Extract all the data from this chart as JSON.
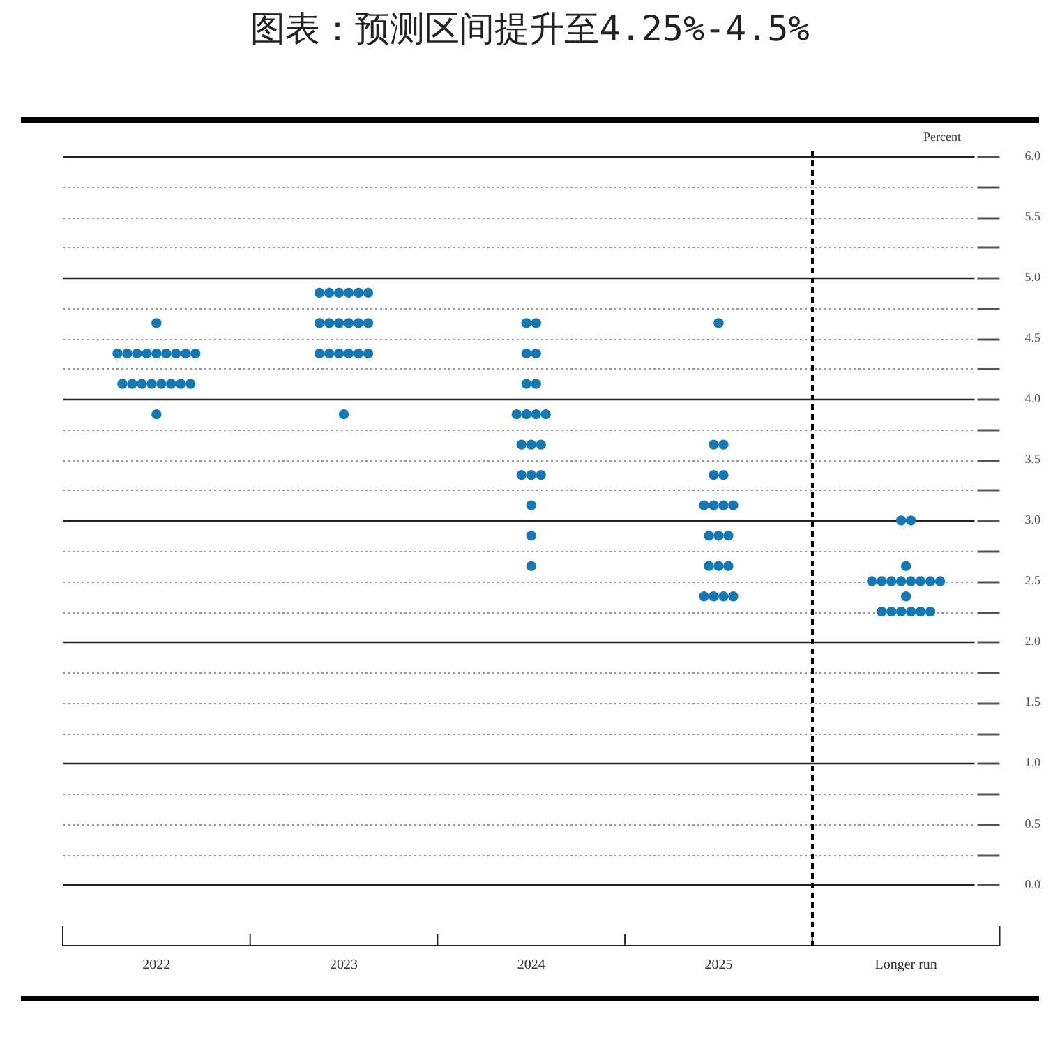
{
  "chart_data": {
    "type": "scatter",
    "title": "图表：预测区间提升至4.25%-4.5%",
    "ylabel": "Percent",
    "categories": [
      "2022",
      "2023",
      "2024",
      "2025",
      "Longer run"
    ],
    "ylim": [
      -0.5,
      6
    ],
    "ref_lines": [
      {
        "axis": "x",
        "value": "Longer run",
        "color": "#000000",
        "line_style": "dashed"
      }
    ],
    "yticks": [
      {
        "value": 0,
        "label": "0.0"
      },
      {
        "value": 0.25,
        "label": null
      },
      {
        "value": 0.5,
        "label": "0.5"
      },
      {
        "value": 0.75,
        "label": null
      },
      {
        "value": 1,
        "label": "1.0"
      },
      {
        "value": 1.25,
        "label": null
      },
      {
        "value": 1.5,
        "label": "1.5"
      },
      {
        "value": 1.75,
        "label": null
      },
      {
        "value": 2,
        "label": "2.0"
      },
      {
        "value": 2.25,
        "label": null
      },
      {
        "value": 2.5,
        "label": "2.5"
      },
      {
        "value": 2.75,
        "label": null
      },
      {
        "value": 3,
        "label": "3.0"
      },
      {
        "value": 3.25,
        "label": null
      },
      {
        "value": 3.5,
        "label": "3.5"
      },
      {
        "value": 3.75,
        "label": null
      },
      {
        "value": 4,
        "label": "4.0"
      },
      {
        "value": 4.25,
        "label": null
      },
      {
        "value": 4.5,
        "label": "4.5"
      },
      {
        "value": 4.75,
        "label": null
      },
      {
        "value": 5,
        "label": "5.0"
      },
      {
        "value": 5.25,
        "label": null
      },
      {
        "value": 5.5,
        "label": "5.5"
      },
      {
        "value": 5.75,
        "label": null
      },
      {
        "value": 6,
        "label": "6.0"
      }
    ],
    "grid": "y",
    "marker": "circle",
    "legend": false,
    "series": [
      {
        "color": "#1478b4",
        "values": [
          4.625,
          4.875,
          4.625,
          4.625,
          3
        ]
      },
      {
        "color": "#1478b4",
        "values": [
          4.375,
          4.875,
          4.625,
          3.625,
          3
        ]
      },
      {
        "color": "#1478b4",
        "values": [
          4.375,
          4.875,
          4.375,
          3.625,
          2.625
        ]
      },
      {
        "color": "#1478b4",
        "values": [
          4.375,
          4.875,
          4.375,
          3.375,
          2.5
        ]
      },
      {
        "color": "#1478b4",
        "values": [
          4.375,
          4.875,
          4.125,
          3.375,
          2.5
        ]
      },
      {
        "color": "#1478b4",
        "values": [
          4.375,
          4.875,
          4.125,
          3.125,
          2.5
        ]
      },
      {
        "color": "#1478b4",
        "values": [
          4.375,
          4.625,
          3.875,
          3.125,
          2.5
        ]
      },
      {
        "color": "#1478b4",
        "values": [
          4.375,
          4.625,
          3.875,
          3.125,
          2.5
        ]
      },
      {
        "color": "#1478b4",
        "values": [
          4.375,
          4.625,
          3.875,
          3.125,
          2.5
        ]
      },
      {
        "color": "#1478b4",
        "values": [
          4.375,
          4.625,
          3.875,
          2.875,
          2.5
        ]
      },
      {
        "color": "#1478b4",
        "values": [
          4.125,
          4.625,
          3.625,
          2.875,
          2.5
        ]
      },
      {
        "color": "#1478b4",
        "values": [
          4.125,
          4.625,
          3.625,
          2.875,
          2.375
        ]
      },
      {
        "color": "#1478b4",
        "values": [
          4.125,
          4.375,
          3.625,
          2.625,
          2.25
        ]
      },
      {
        "color": "#1478b4",
        "values": [
          4.125,
          4.375,
          3.375,
          2.625,
          2.25
        ]
      },
      {
        "color": "#1478b4",
        "values": [
          4.125,
          4.375,
          3.375,
          2.625,
          2.25
        ]
      },
      {
        "color": "#1478b4",
        "values": [
          4.125,
          4.375,
          3.375,
          2.375,
          2.25
        ]
      },
      {
        "color": "#1478b4",
        "values": [
          4.125,
          4.375,
          3.125,
          2.375,
          2.25
        ]
      },
      {
        "color": "#1478b4",
        "values": [
          4.125,
          4.375,
          2.875,
          2.375,
          2.25
        ]
      },
      {
        "color": "#1478b4",
        "values": [
          3.875,
          3.875,
          2.625,
          2.375,
          null
        ]
      }
    ]
  }
}
